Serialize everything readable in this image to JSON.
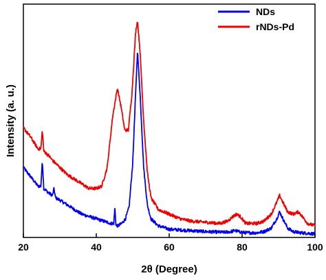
{
  "chart_data": {
    "type": "line",
    "xlabel": "2θ (Degree)",
    "ylabel": "Intensity (a. u.)",
    "xlim": [
      20,
      100
    ],
    "x_ticks": [
      "20",
      "40",
      "60",
      "80",
      "100"
    ],
    "y_ticks_shown": false,
    "grid": false,
    "legend_position": "top-right",
    "series": [
      {
        "name": "NDs",
        "color": "#0000ee",
        "points": [
          [
            20,
            0.3
          ],
          [
            22,
            0.26
          ],
          [
            24,
            0.22
          ],
          [
            24.8,
            0.22
          ],
          [
            25.2,
            0.33
          ],
          [
            25.6,
            0.21
          ],
          [
            27,
            0.19
          ],
          [
            28,
            0.18
          ],
          [
            28.4,
            0.21
          ],
          [
            28.8,
            0.17
          ],
          [
            30,
            0.16
          ],
          [
            32,
            0.14
          ],
          [
            34,
            0.12
          ],
          [
            36,
            0.1
          ],
          [
            38,
            0.09
          ],
          [
            40,
            0.08
          ],
          [
            42,
            0.07
          ],
          [
            44,
            0.06
          ],
          [
            44.8,
            0.06
          ],
          [
            45.1,
            0.13
          ],
          [
            45.4,
            0.05
          ],
          [
            46,
            0.05
          ],
          [
            47,
            0.06
          ],
          [
            48,
            0.08
          ],
          [
            49,
            0.13
          ],
          [
            50,
            0.32
          ],
          [
            50.8,
            0.62
          ],
          [
            51.3,
            0.8
          ],
          [
            52.0,
            0.62
          ],
          [
            53,
            0.3
          ],
          [
            54,
            0.14
          ],
          [
            55,
            0.08
          ],
          [
            57,
            0.05
          ],
          [
            60,
            0.035
          ],
          [
            65,
            0.03
          ],
          [
            70,
            0.025
          ],
          [
            75,
            0.022
          ],
          [
            77,
            0.025
          ],
          [
            78,
            0.03
          ],
          [
            79,
            0.025
          ],
          [
            81,
            0.02
          ],
          [
            84,
            0.02
          ],
          [
            86,
            0.025
          ],
          [
            88,
            0.04
          ],
          [
            89.5,
            0.08
          ],
          [
            90.3,
            0.11
          ],
          [
            91.2,
            0.08
          ],
          [
            92.5,
            0.04
          ],
          [
            94,
            0.025
          ],
          [
            96,
            0.02
          ],
          [
            98,
            0.018
          ],
          [
            100,
            0.015
          ]
        ]
      },
      {
        "name": "rNDs-Pd",
        "color": "#ee0000",
        "points": [
          [
            20,
            0.47
          ],
          [
            22,
            0.43
          ],
          [
            24,
            0.38
          ],
          [
            24.8,
            0.38
          ],
          [
            25.2,
            0.46
          ],
          [
            25.6,
            0.37
          ],
          [
            27,
            0.35
          ],
          [
            28,
            0.33
          ],
          [
            30,
            0.3
          ],
          [
            32,
            0.27
          ],
          [
            34,
            0.25
          ],
          [
            36,
            0.23
          ],
          [
            38,
            0.21
          ],
          [
            40,
            0.21
          ],
          [
            41.5,
            0.22
          ],
          [
            43,
            0.3
          ],
          [
            44.5,
            0.52
          ],
          [
            45.8,
            0.64
          ],
          [
            46.8,
            0.56
          ],
          [
            47.8,
            0.46
          ],
          [
            48.8,
            0.46
          ],
          [
            49.8,
            0.62
          ],
          [
            50.8,
            0.88
          ],
          [
            51.3,
            0.93
          ],
          [
            52.0,
            0.8
          ],
          [
            53,
            0.5
          ],
          [
            54,
            0.28
          ],
          [
            55,
            0.17
          ],
          [
            57,
            0.12
          ],
          [
            60,
            0.1
          ],
          [
            63,
            0.08
          ],
          [
            66,
            0.07
          ],
          [
            70,
            0.065
          ],
          [
            74,
            0.06
          ],
          [
            76,
            0.07
          ],
          [
            77.5,
            0.09
          ],
          [
            78.5,
            0.1
          ],
          [
            79.5,
            0.09
          ],
          [
            81,
            0.06
          ],
          [
            84,
            0.06
          ],
          [
            86,
            0.07
          ],
          [
            88,
            0.1
          ],
          [
            89.5,
            0.15
          ],
          [
            90.3,
            0.18
          ],
          [
            91.2,
            0.15
          ],
          [
            92.5,
            0.11
          ],
          [
            94,
            0.1
          ],
          [
            95.5,
            0.11
          ],
          [
            96.5,
            0.09
          ],
          [
            98,
            0.06
          ],
          [
            100,
            0.05
          ]
        ]
      }
    ]
  }
}
